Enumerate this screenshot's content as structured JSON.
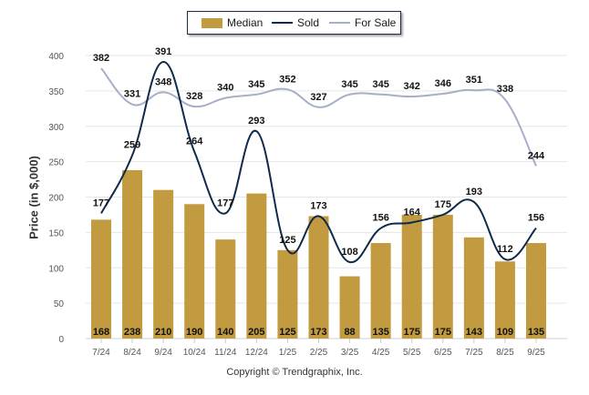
{
  "chart_data": {
    "type": "bar",
    "title": "",
    "xlabel": "",
    "ylabel": "Price (in $,000)",
    "ylim": [
      0,
      400
    ],
    "yticks": [
      0,
      50,
      100,
      150,
      200,
      250,
      300,
      350,
      400
    ],
    "grid": true,
    "legend_position": "top-center",
    "categories": [
      "7/24",
      "8/24",
      "9/24",
      "10/24",
      "11/24",
      "12/24",
      "1/25",
      "2/25",
      "3/25",
      "4/25",
      "5/25",
      "6/25",
      "7/25",
      "8/25",
      "9/25"
    ],
    "series": [
      {
        "name": "Median",
        "kind": "bar",
        "color": "#c29a3f",
        "values": [
          168,
          238,
          210,
          190,
          140,
          205,
          125,
          173,
          88,
          135,
          175,
          175,
          143,
          109,
          135
        ]
      },
      {
        "name": "Sold",
        "kind": "line",
        "color": "#0f2a4a",
        "values": [
          177,
          259,
          391,
          264,
          177,
          293,
          125,
          173,
          108,
          156,
          164,
          175,
          193,
          112,
          156
        ]
      },
      {
        "name": "For Sale",
        "kind": "line",
        "color": "#a6aec8",
        "values": [
          382,
          331,
          348,
          328,
          340,
          345,
          352,
          327,
          345,
          345,
          342,
          346,
          351,
          338,
          244
        ]
      }
    ]
  },
  "legend": {
    "median_label": "Median",
    "sold_label": "Sold",
    "for_sale_label": "For Sale"
  },
  "footer": {
    "copyright": "Copyright © Trendgraphix, Inc."
  }
}
